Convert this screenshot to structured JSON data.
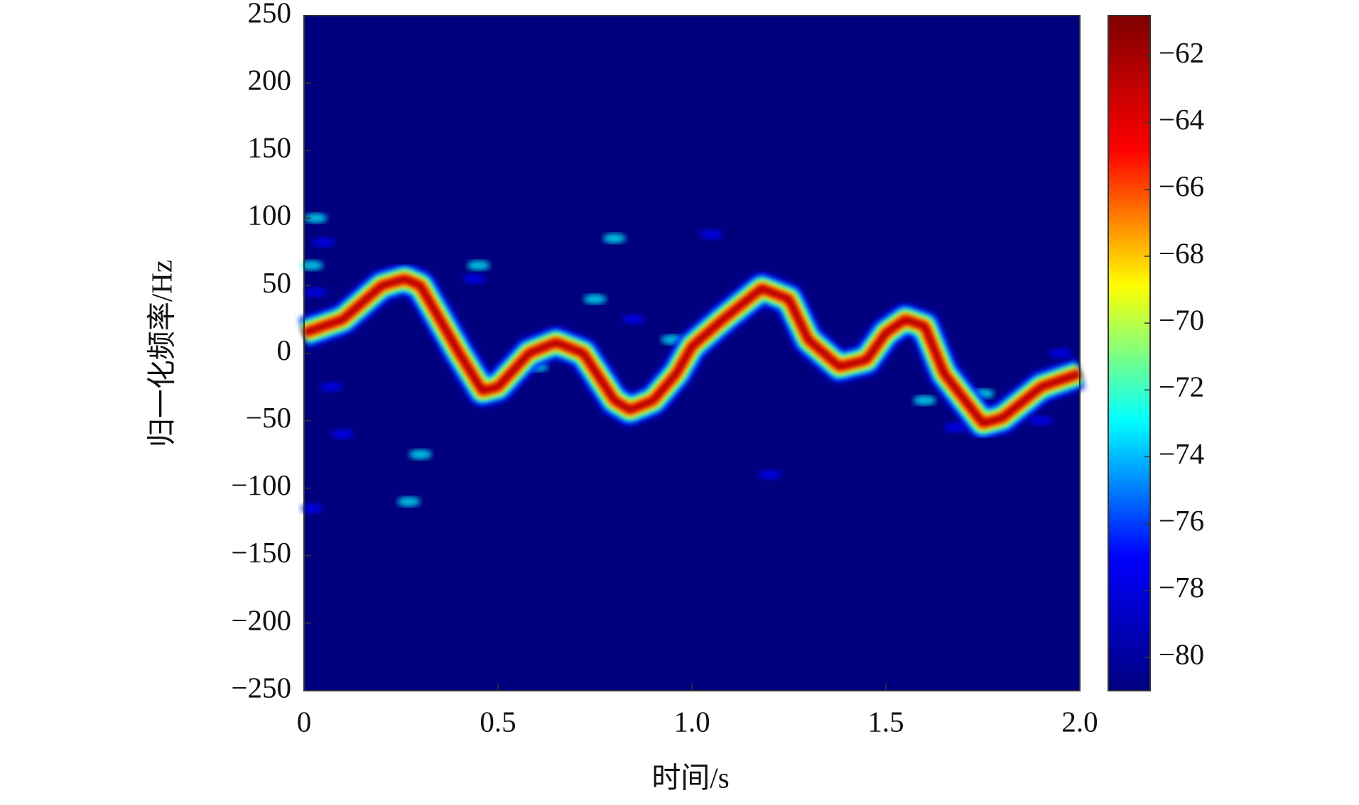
{
  "chart_data": {
    "type": "spectrogram",
    "x_label": "时间/s",
    "y_label": "归一化频率/Hz",
    "xlim": [
      0,
      2
    ],
    "xticks": [
      0,
      0.5,
      {
        "value": 1,
        "label": "1.0"
      },
      1.5,
      {
        "value": 2,
        "label": "2.0"
      }
    ],
    "ylim": [
      -250,
      250
    ],
    "yticks": [
      {
        "value": -250,
        "label": "−250"
      },
      {
        "value": -200,
        "label": "−200"
      },
      {
        "value": -150,
        "label": "−150"
      },
      {
        "value": -100,
        "label": "−100"
      },
      {
        "value": -50,
        "label": "−50"
      },
      0,
      50,
      100,
      150,
      200,
      250
    ],
    "colormap": [
      "#00007f",
      "#0000ff",
      "#00ffff",
      "#ffff00",
      "#ff0000",
      "#7f0000"
    ],
    "clim": [
      -81,
      -60.8
    ],
    "cticks": [
      {
        "value": -80,
        "label": "−80"
      },
      {
        "value": -78,
        "label": "−78"
      },
      {
        "value": -76,
        "label": "−76"
      },
      {
        "value": -74,
        "label": "−74"
      },
      {
        "value": -72,
        "label": "−72"
      },
      {
        "value": -70,
        "label": "−70"
      },
      {
        "value": -68,
        "label": "−68"
      },
      {
        "value": -66,
        "label": "−66"
      },
      {
        "value": -64,
        "label": "−64"
      },
      {
        "value": -62,
        "label": "−62"
      }
    ],
    "ridge": {
      "x": [
        0,
        0.1,
        0.2,
        0.26,
        0.3,
        0.4,
        0.46,
        0.5,
        0.58,
        0.65,
        0.72,
        0.8,
        0.84,
        0.9,
        0.96,
        1.0,
        1.08,
        1.18,
        1.25,
        1.3,
        1.38,
        1.45,
        1.5,
        1.55,
        1.6,
        1.65,
        1.75,
        1.8,
        1.9,
        2.0
      ],
      "y": [
        15,
        25,
        50,
        55,
        50,
        0,
        -28,
        -25,
        0,
        8,
        0,
        -35,
        -42,
        -35,
        -15,
        5,
        25,
        48,
        40,
        10,
        -10,
        -5,
        15,
        25,
        20,
        -15,
        -52,
        -48,
        -25,
        -15
      ]
    },
    "spots": {
      "x": [
        0.03,
        0.05,
        0.02,
        0.03,
        0.45,
        0.44,
        0.8,
        1.05,
        0.75,
        0.85,
        1.75,
        1.9,
        0.85,
        0.1,
        0.3,
        0.02,
        0.6,
        1.2,
        1.6,
        1.68,
        0.95,
        1.95,
        0.27,
        0.07
      ],
      "y": [
        100,
        82,
        65,
        45,
        65,
        55,
        85,
        88,
        40,
        25,
        -30,
        -50,
        -45,
        -60,
        -75,
        -115,
        -10,
        -90,
        -35,
        -55,
        10,
        0,
        -110,
        -25
      ]
    }
  }
}
